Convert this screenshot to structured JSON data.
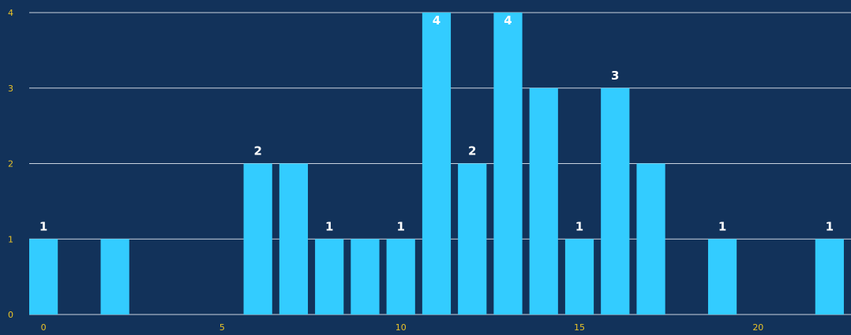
{
  "chart_data": {
    "type": "bar",
    "x": [
      0,
      2,
      6,
      7,
      8,
      9,
      10,
      11,
      12,
      13,
      14,
      15,
      16,
      17,
      19,
      22
    ],
    "values": [
      1,
      1,
      2,
      2,
      1,
      1,
      1,
      4,
      2,
      4,
      3,
      1,
      3,
      2,
      1,
      1
    ],
    "data_labels": [
      "1",
      "",
      "2",
      "",
      "1",
      "",
      "1",
      "4",
      "2",
      "4",
      "",
      "1",
      "3",
      "",
      "1",
      "1"
    ],
    "title": "",
    "xlabel": "",
    "ylabel": "",
    "xlim": [
      -0.4,
      22.6
    ],
    "ylim": [
      0,
      4
    ],
    "x_ticks": [
      0,
      5,
      10,
      15,
      20
    ],
    "y_ticks": [
      0,
      1,
      2,
      3,
      4
    ],
    "grid": "horizontal",
    "legend": "none",
    "colors": {
      "background": "#12325a",
      "bar": "#33ccff",
      "gridline": "#c9d3df",
      "tick_label": "#e8c228",
      "data_label": "#ffffff"
    }
  }
}
